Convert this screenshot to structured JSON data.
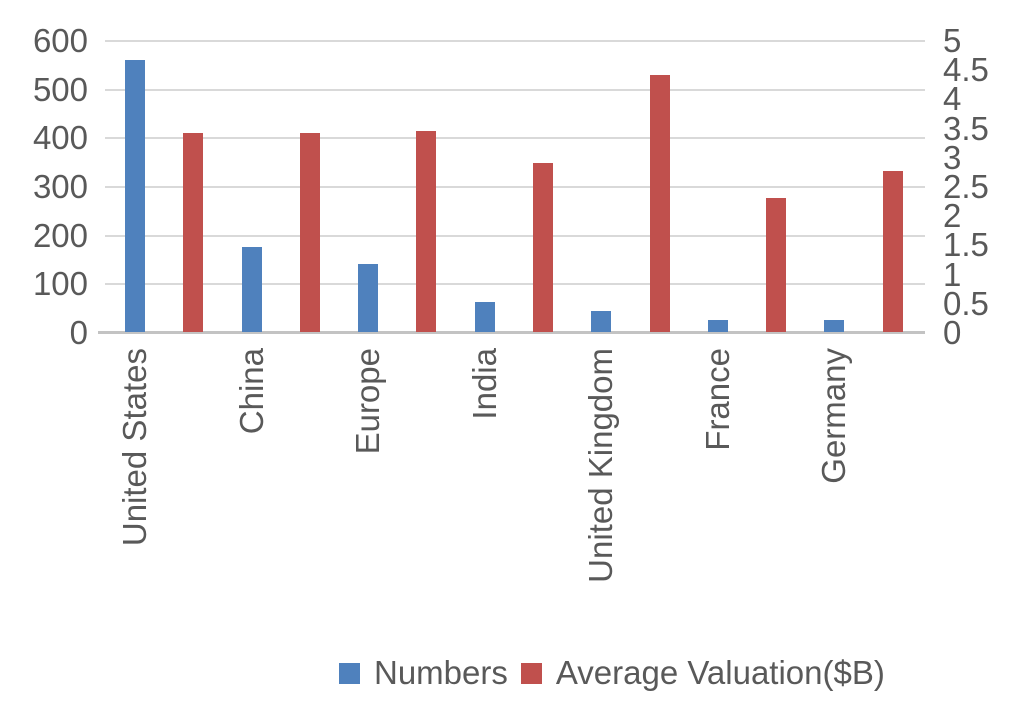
{
  "chart_data": {
    "type": "bar",
    "title": "",
    "subtitle": "",
    "categories": [
      "United States",
      "China",
      "Europe",
      "India",
      "United Kingdom",
      "France",
      "Germany"
    ],
    "series": [
      {
        "name": "Numbers",
        "color": "#4F81BD",
        "axis": "left",
        "values": [
          560,
          175,
          140,
          62,
          43,
          25,
          25
        ]
      },
      {
        "name": "Average Valuation($B)",
        "color": "#C0504D",
        "axis": "right",
        "values": [
          3.4,
          3.4,
          3.45,
          2.9,
          4.4,
          2.3,
          2.75
        ]
      }
    ],
    "left_axis": {
      "min": 0,
      "max": 600,
      "step": 100,
      "tick_labels": [
        "600",
        "500",
        "400",
        "300",
        "200",
        "100",
        "0"
      ]
    },
    "right_axis": {
      "min": 0,
      "max": 5,
      "step": 0.5,
      "tick_labels": [
        "5",
        "4.5",
        "4",
        "3.5",
        "3",
        "2.5",
        "2",
        "1.5",
        "1",
        "0.5",
        "0"
      ]
    },
    "grid": true,
    "legend_position": "bottom",
    "category_label_rotation_deg": -90
  },
  "style_colors": {
    "text": "#595959",
    "gridline": "#d9d9d9",
    "baseline": "#c3c3c3",
    "background": "#ffffff",
    "series_blue": "#4F81BD",
    "series_red": "#C0504D"
  }
}
